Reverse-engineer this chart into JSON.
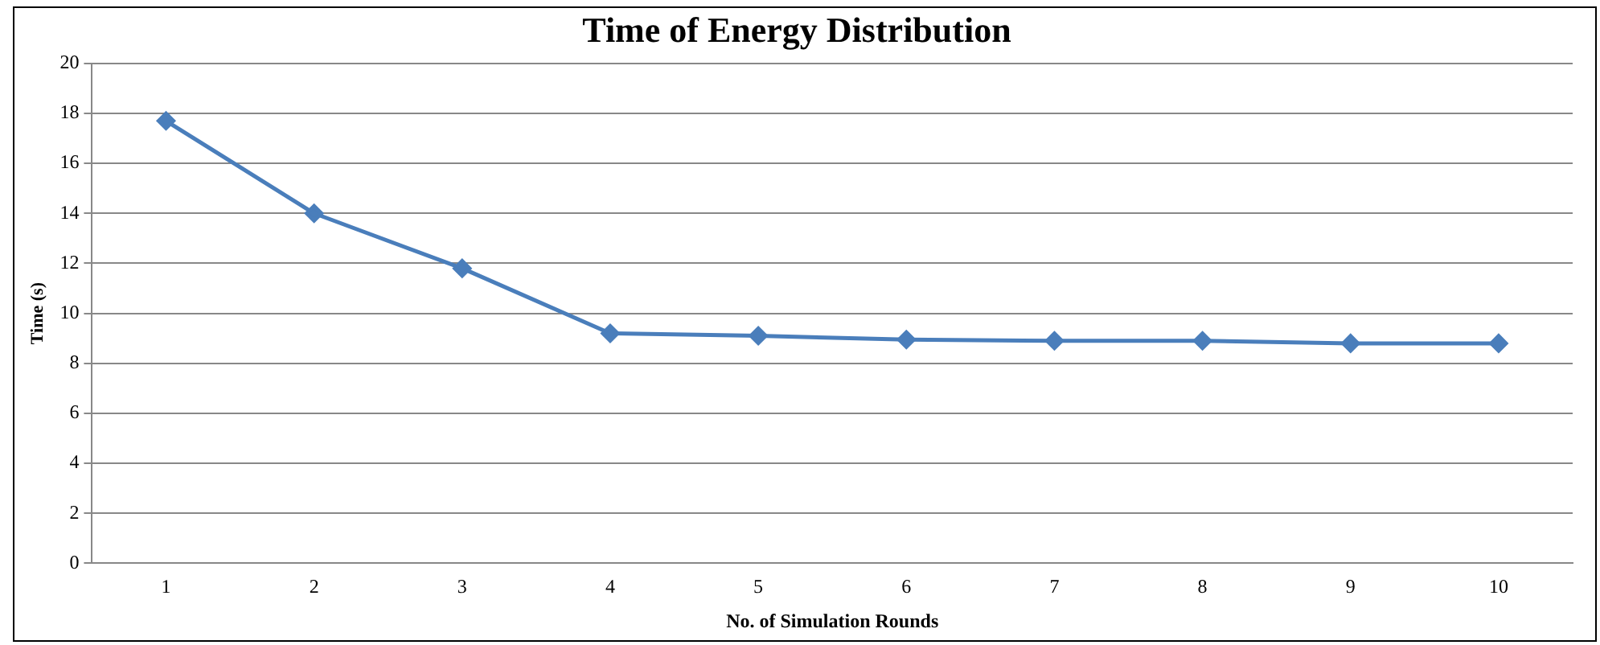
{
  "chart_data": {
    "type": "line",
    "title": "Time of Energy Distribution",
    "xlabel": "No. of Simulation Rounds",
    "ylabel": "Time (s)",
    "categories": [
      "1",
      "2",
      "3",
      "4",
      "5",
      "6",
      "7",
      "8",
      "9",
      "10"
    ],
    "series": [
      {
        "color": "#4a7ebb",
        "values": [
          17.7,
          14.0,
          11.8,
          9.2,
          9.1,
          8.95,
          8.9,
          8.9,
          8.8,
          8.8
        ]
      }
    ],
    "ylim": [
      0,
      20
    ],
    "yticks": [
      0,
      2,
      4,
      6,
      8,
      10,
      12,
      14,
      16,
      18,
      20
    ],
    "grid": "y",
    "legend": false,
    "marker": "diamond",
    "line_style": "solid"
  }
}
